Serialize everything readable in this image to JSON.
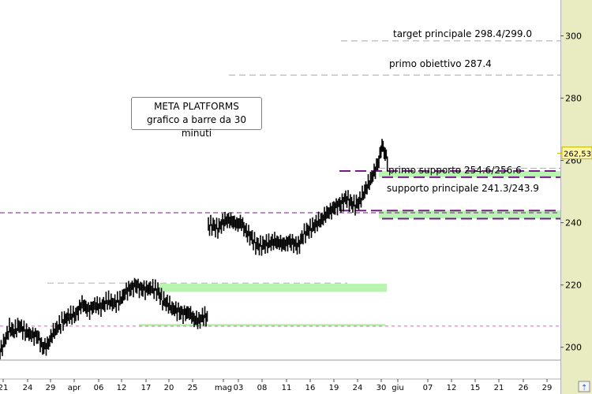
{
  "colors": {
    "background": "#ffffff",
    "axis_panel": "#e8ecc0",
    "price_bars": "#000000",
    "support_zone": "#b8f5b0",
    "level_line": "#7a1a8a",
    "target_line": "#a0a0a0",
    "price_badge": "#fff6a8"
  },
  "chart_data": {
    "type": "bar",
    "title": "META PLATFORMS",
    "subtitle": "grafico a barre da 30 minuti",
    "ylim": [
      196,
      310
    ],
    "yticks": [
      "200",
      "220",
      "240",
      "260",
      "280",
      "300"
    ],
    "xticks": [
      "21",
      "24",
      "29",
      "apr",
      "06",
      "12",
      "17",
      "20",
      "25",
      "mag",
      "03",
      "08",
      "11",
      "16",
      "19",
      "24",
      "30",
      "giu",
      "07",
      "12",
      "15",
      "21",
      "26",
      "29"
    ],
    "last_price_label": "262,53",
    "last_price": 262.53,
    "price_path": [
      [
        0,
        198.5
      ],
      [
        6,
        202
      ],
      [
        12,
        206
      ],
      [
        18,
        205
      ],
      [
        24,
        207
      ],
      [
        32,
        205
      ],
      [
        40,
        204
      ],
      [
        48,
        203.5
      ],
      [
        54,
        200
      ],
      [
        60,
        200.5
      ],
      [
        66,
        204
      ],
      [
        72,
        206
      ],
      [
        80,
        208.5
      ],
      [
        88,
        210
      ],
      [
        96,
        210.5
      ],
      [
        104,
        214
      ],
      [
        112,
        212
      ],
      [
        120,
        213.5
      ],
      [
        128,
        213
      ],
      [
        136,
        215
      ],
      [
        144,
        214
      ],
      [
        152,
        215
      ],
      [
        160,
        218
      ],
      [
        166,
        219
      ],
      [
        172,
        220
      ],
      [
        178,
        219
      ],
      [
        184,
        218.5
      ],
      [
        192,
        219
      ],
      [
        200,
        218
      ],
      [
        206,
        215
      ],
      [
        212,
        214
      ],
      [
        218,
        212.5
      ],
      [
        226,
        211.5
      ],
      [
        232,
        211
      ],
      [
        240,
        211
      ],
      [
        246,
        209
      ],
      [
        252,
        208.5
      ],
      [
        258,
        210
      ],
      [
        264,
        209.5
      ],
      [
        264,
        239
      ],
      [
        270,
        239
      ],
      [
        276,
        238
      ],
      [
        282,
        240
      ],
      [
        288,
        241
      ],
      [
        294,
        240.5
      ],
      [
        300,
        239.5
      ],
      [
        306,
        240
      ],
      [
        312,
        237
      ],
      [
        318,
        235.5
      ],
      [
        324,
        233
      ],
      [
        330,
        232.5
      ],
      [
        336,
        233
      ],
      [
        342,
        233.5
      ],
      [
        348,
        234
      ],
      [
        354,
        233.5
      ],
      [
        360,
        233
      ],
      [
        366,
        234
      ],
      [
        372,
        233.5
      ],
      [
        378,
        232.5
      ],
      [
        384,
        236
      ],
      [
        390,
        237.5
      ],
      [
        396,
        238.5
      ],
      [
        402,
        240
      ],
      [
        408,
        241
      ],
      [
        414,
        243
      ],
      [
        420,
        244
      ],
      [
        426,
        245.5
      ],
      [
        432,
        246
      ],
      [
        438,
        248
      ],
      [
        444,
        246.5
      ],
      [
        450,
        245.5
      ],
      [
        456,
        247
      ],
      [
        462,
        250
      ],
      [
        468,
        253
      ],
      [
        474,
        256
      ],
      [
        480,
        260
      ],
      [
        484,
        265
      ],
      [
        488,
        262
      ],
      [
        492,
        259
      ]
    ],
    "levels": [
      {
        "label": "target principale 298.4/299.0",
        "value": 298.4,
        "style": "target"
      },
      {
        "label": "primo obiettivo 287.4",
        "value": 287.4,
        "style": "target"
      },
      {
        "label": "primo supporto 254.6/256.6",
        "value": 254.6,
        "value2": 256.6,
        "style": "support"
      },
      {
        "label": "supporto principale 241.3/243.9",
        "value": 241.3,
        "value2": 243.9,
        "style": "support"
      }
    ],
    "other_lines": [
      {
        "value": 243.2,
        "style": "purple-dashed"
      },
      {
        "value": 206.8,
        "style": "pink-dashed"
      },
      {
        "value": 220.6,
        "style": "gray-dashed"
      }
    ],
    "zones": [
      {
        "from": 217.8,
        "to": 220.4
      },
      {
        "from": 206.7,
        "to": 207.5
      }
    ]
  }
}
